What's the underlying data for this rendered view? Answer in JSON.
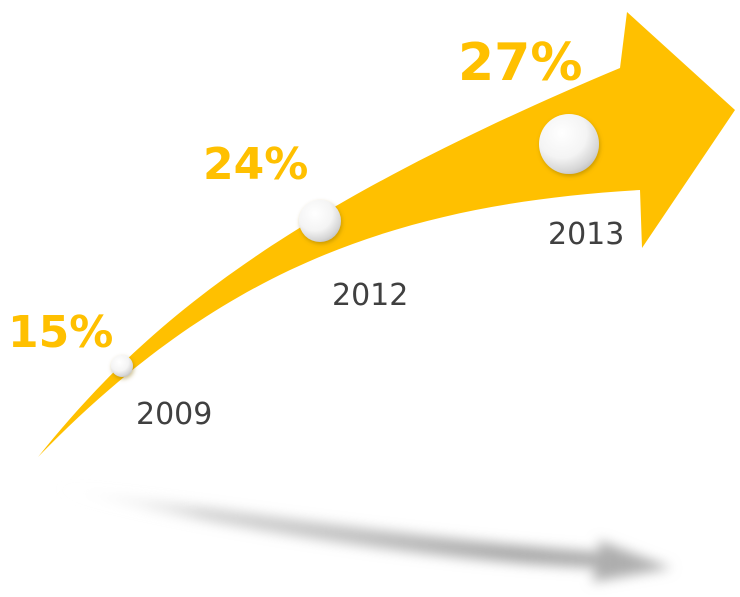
{
  "colors": {
    "arrow": "#FFC000",
    "label": "#FFC000",
    "year_text": "#404040",
    "shadow": "#9a9a9a"
  },
  "milestones": [
    {
      "year": "2009",
      "percent": "15%",
      "marker": "circle-marker"
    },
    {
      "year": "2012",
      "percent": "24%",
      "marker": "circle-marker"
    },
    {
      "year": "2013",
      "percent": "27%",
      "marker": "circle-marker"
    }
  ]
}
